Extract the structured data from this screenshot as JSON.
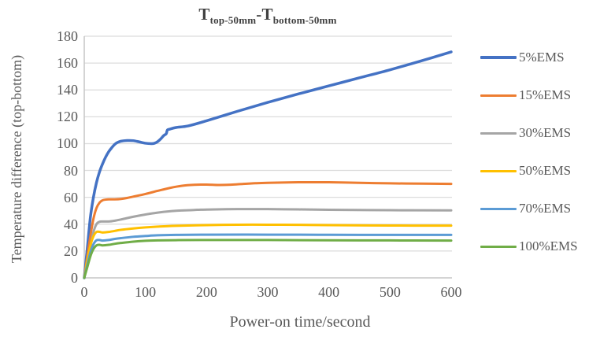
{
  "title": {
    "t1": "T",
    "sub1": "top-50mm",
    "minus": "-",
    "t2": "T",
    "sub2": "bottom-50mm"
  },
  "axes": {
    "x": {
      "title": "Power-on time/second",
      "ticks": [
        0,
        100,
        200,
        300,
        400,
        500,
        600
      ]
    },
    "y": {
      "title": "Temperature difference (top-bottom)",
      "ticks": [
        0,
        20,
        40,
        60,
        80,
        100,
        120,
        140,
        160,
        180
      ]
    }
  },
  "colors": {
    "gridline": "#DCDCDC",
    "axis_line": "#C6C6C6",
    "tick_text": "#595959",
    "title_text": "#404040"
  },
  "chart_data": {
    "type": "line",
    "title": "T_top-50mm - T_bottom-50mm",
    "xlabel": "Power-on time/second",
    "ylabel": "Temperature difference (top-bottom)",
    "xlim": [
      0,
      600
    ],
    "ylim": [
      0,
      180
    ],
    "grid": "horizontal gridlines every 20",
    "legend_position": "right",
    "series": [
      {
        "name": "5%EMS",
        "color": "#4472C4",
        "width": 3.5,
        "points": [
          [
            0,
            0
          ],
          [
            5,
            22
          ],
          [
            10,
            45
          ],
          [
            15,
            60
          ],
          [
            20,
            71
          ],
          [
            25,
            79
          ],
          [
            30,
            85
          ],
          [
            35,
            90
          ],
          [
            40,
            94
          ],
          [
            45,
            97
          ],
          [
            50,
            99.5
          ],
          [
            55,
            101
          ],
          [
            60,
            101.8
          ],
          [
            70,
            102.3
          ],
          [
            80,
            102.2
          ],
          [
            90,
            101.3
          ],
          [
            100,
            100.3
          ],
          [
            110,
            100
          ],
          [
            115,
            100.3
          ],
          [
            120,
            101.5
          ],
          [
            125,
            103.5
          ],
          [
            130,
            106
          ],
          [
            134,
            107.3
          ],
          [
            136,
            110.2
          ],
          [
            140,
            110.8
          ],
          [
            150,
            112
          ],
          [
            170,
            113.2
          ],
          [
            200,
            117
          ],
          [
            250,
            124
          ],
          [
            300,
            130.7
          ],
          [
            350,
            137
          ],
          [
            400,
            143
          ],
          [
            450,
            149
          ],
          [
            500,
            155
          ],
          [
            550,
            161.5
          ],
          [
            600,
            168.3
          ]
        ]
      },
      {
        "name": "15%EMS",
        "color": "#ED7D31",
        "width": 3,
        "points": [
          [
            0,
            0
          ],
          [
            5,
            16
          ],
          [
            10,
            31
          ],
          [
            15,
            44
          ],
          [
            20,
            52
          ],
          [
            25,
            56
          ],
          [
            30,
            57.8
          ],
          [
            35,
            58.3
          ],
          [
            40,
            58.5
          ],
          [
            50,
            58.5
          ],
          [
            60,
            58.8
          ],
          [
            70,
            59.5
          ],
          [
            80,
            60.5
          ],
          [
            100,
            62.5
          ],
          [
            120,
            64.8
          ],
          [
            140,
            67
          ],
          [
            160,
            68.6
          ],
          [
            180,
            69.3
          ],
          [
            200,
            69.5
          ],
          [
            220,
            69.2
          ],
          [
            240,
            69.4
          ],
          [
            260,
            70
          ],
          [
            280,
            70.5
          ],
          [
            300,
            70.8
          ],
          [
            350,
            71.2
          ],
          [
            400,
            71.2
          ],
          [
            450,
            70.8
          ],
          [
            500,
            70.4
          ],
          [
            550,
            70.2
          ],
          [
            600,
            70
          ]
        ]
      },
      {
        "name": "30%EMS",
        "color": "#A5A5A5",
        "width": 3,
        "points": [
          [
            0,
            0
          ],
          [
            5,
            11
          ],
          [
            10,
            23
          ],
          [
            15,
            34
          ],
          [
            20,
            40
          ],
          [
            25,
            41.8
          ],
          [
            30,
            42
          ],
          [
            40,
            42
          ],
          [
            50,
            42.6
          ],
          [
            60,
            43.5
          ],
          [
            80,
            45.5
          ],
          [
            100,
            47.2
          ],
          [
            120,
            48.6
          ],
          [
            140,
            49.6
          ],
          [
            160,
            50.2
          ],
          [
            180,
            50.6
          ],
          [
            200,
            50.9
          ],
          [
            250,
            51.2
          ],
          [
            300,
            51.2
          ],
          [
            350,
            51
          ],
          [
            400,
            50.7
          ],
          [
            500,
            50.4
          ],
          [
            600,
            50.3
          ]
        ]
      },
      {
        "name": "50%EMS",
        "color": "#FFC000",
        "width": 3,
        "points": [
          [
            0,
            0
          ],
          [
            5,
            13
          ],
          [
            10,
            24
          ],
          [
            15,
            31
          ],
          [
            20,
            34.2
          ],
          [
            25,
            34.3
          ],
          [
            30,
            33.8
          ],
          [
            40,
            34.2
          ],
          [
            50,
            35
          ],
          [
            60,
            35.8
          ],
          [
            80,
            36.8
          ],
          [
            100,
            37.6
          ],
          [
            120,
            38.2
          ],
          [
            150,
            38.8
          ],
          [
            200,
            39.3
          ],
          [
            250,
            39.6
          ],
          [
            300,
            39.6
          ],
          [
            350,
            39.5
          ],
          [
            400,
            39.3
          ],
          [
            500,
            39
          ],
          [
            600,
            38.9
          ]
        ]
      },
      {
        "name": "70%EMS",
        "color": "#5B9BD5",
        "width": 3,
        "points": [
          [
            0,
            0
          ],
          [
            5,
            10
          ],
          [
            10,
            19
          ],
          [
            15,
            25
          ],
          [
            20,
            28
          ],
          [
            25,
            28.2
          ],
          [
            30,
            27.8
          ],
          [
            40,
            28.2
          ],
          [
            50,
            29
          ],
          [
            60,
            29.6
          ],
          [
            80,
            30.6
          ],
          [
            100,
            31.2
          ],
          [
            120,
            31.7
          ],
          [
            150,
            32
          ],
          [
            200,
            32.2
          ],
          [
            300,
            32.2
          ],
          [
            400,
            32.1
          ],
          [
            500,
            32
          ],
          [
            600,
            32
          ]
        ]
      },
      {
        "name": "100%EMS",
        "color": "#70AD47",
        "width": 3,
        "points": [
          [
            0,
            0
          ],
          [
            5,
            8
          ],
          [
            10,
            16
          ],
          [
            15,
            21.5
          ],
          [
            20,
            24.2
          ],
          [
            25,
            24.6
          ],
          [
            30,
            24.2
          ],
          [
            40,
            24.6
          ],
          [
            50,
            25.4
          ],
          [
            60,
            26
          ],
          [
            80,
            27
          ],
          [
            100,
            27.6
          ],
          [
            120,
            27.9
          ],
          [
            150,
            28.1
          ],
          [
            200,
            28.2
          ],
          [
            300,
            28.2
          ],
          [
            400,
            28
          ],
          [
            500,
            27.9
          ],
          [
            600,
            27.8
          ]
        ]
      }
    ]
  }
}
